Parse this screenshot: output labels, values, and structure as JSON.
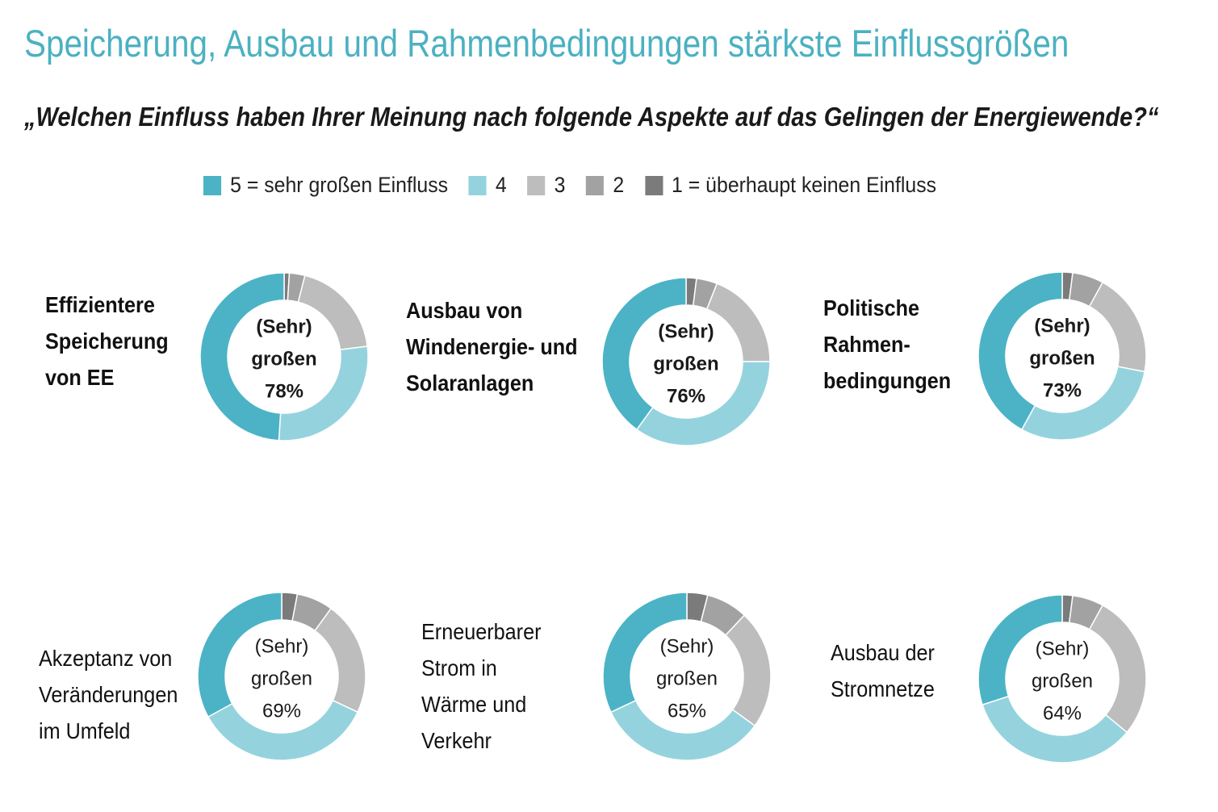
{
  "header": {
    "title": "Speicherung, Ausbau und Rahmenbedingungen stärkste Einflussgrößen",
    "subtitle": "„Welchen Einfluss haben Ihrer Meinung nach folgende Aspekte auf das Gelingen der Energiewende?“"
  },
  "legend": [
    {
      "label": "5 = sehr großen Einfluss",
      "color": "#4bb3c5"
    },
    {
      "label": "4",
      "color": "#94d3de"
    },
    {
      "label": "3",
      "color": "#bdbdbd"
    },
    {
      "label": "2",
      "color": "#a2a2a2"
    },
    {
      "label": "1 = überhaupt keinen Einfluss",
      "color": "#7b7b7b"
    }
  ],
  "chart_data": [
    {
      "type": "pie",
      "label_lines": [
        "Effizientere",
        "Speicherung",
        "von EE"
      ],
      "center_lines": [
        "(Sehr)",
        "großen",
        "78%"
      ],
      "categories": [
        "5 = sehr großen Einfluss",
        "4",
        "3",
        "2",
        "1 = überhaupt keinen Einfluss"
      ],
      "values": [
        49,
        28,
        19,
        3,
        1
      ]
    },
    {
      "type": "pie",
      "label_lines": [
        "Ausbau von",
        "Windenergie- und",
        "Solaranlagen"
      ],
      "center_lines": [
        "(Sehr)",
        "großen",
        "76%"
      ],
      "categories": [
        "5 = sehr großen Einfluss",
        "4",
        "3",
        "2",
        "1 = überhaupt keinen Einfluss"
      ],
      "values": [
        40,
        35,
        19,
        4,
        2
      ]
    },
    {
      "type": "pie",
      "label_lines": [
        "Politische",
        "Rahmen-",
        "bedingungen"
      ],
      "center_lines": [
        "(Sehr)",
        "großen",
        "73%"
      ],
      "categories": [
        "5 = sehr großen Einfluss",
        "4",
        "3",
        "2",
        "1 = überhaupt keinen Einfluss"
      ],
      "values": [
        42,
        30,
        20,
        6,
        2
      ]
    },
    {
      "type": "pie",
      "label_lines": [
        "Akzeptanz von",
        "Veränderungen",
        "im Umfeld"
      ],
      "center_lines": [
        "(Sehr)",
        "großen",
        "69%"
      ],
      "categories": [
        "5 = sehr großen Einfluss",
        "4",
        "3",
        "2",
        "1 = überhaupt keinen Einfluss"
      ],
      "values": [
        33,
        35,
        22,
        7,
        3
      ]
    },
    {
      "type": "pie",
      "label_lines": [
        "Erneuerbarer",
        "Strom in",
        "Wärme und",
        "Verkehr"
      ],
      "center_lines": [
        "(Sehr)",
        "großen",
        "65%"
      ],
      "categories": [
        "5 = sehr großen Einfluss",
        "4",
        "3",
        "2",
        "1 = überhaupt keinen Einfluss"
      ],
      "values": [
        32,
        33,
        23,
        8,
        4
      ]
    },
    {
      "type": "pie",
      "label_lines": [
        "Ausbau der",
        "Stromnetze"
      ],
      "center_lines": [
        "(Sehr)",
        "großen",
        "64%"
      ],
      "categories": [
        "5 = sehr großen Einfluss",
        "4",
        "3",
        "2",
        "1 = überhaupt keinen Einfluss"
      ],
      "values": [
        30,
        34,
        28,
        6,
        2
      ]
    }
  ]
}
